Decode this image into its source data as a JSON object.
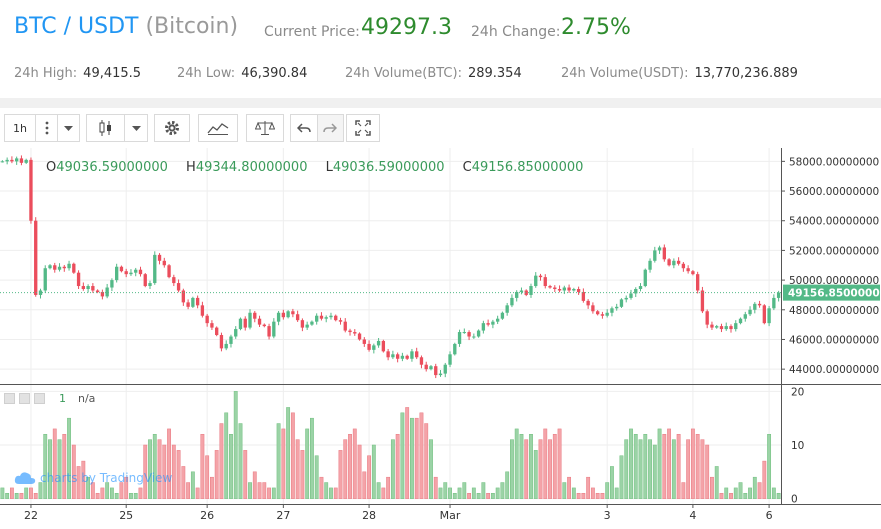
{
  "header": {
    "pair": "BTC / USDT",
    "name": "(Bitcoin)",
    "current_price_label": "Current Price:",
    "current_price": "49297.3",
    "change_label": "24h Change:",
    "change": "2.75%",
    "stats": [
      {
        "label": "24h High:",
        "value": "49,415.5"
      },
      {
        "label": "24h Low:",
        "value": "46,390.84"
      },
      {
        "label": "24h Volume(BTC):",
        "value": "289.354"
      },
      {
        "label": "24h Volume(USDT):",
        "value": "13,770,236.889"
      }
    ],
    "colors": {
      "pair": "#2196f3",
      "price": "#2e8b2e",
      "label": "#8a8a8a"
    }
  },
  "toolbar": {
    "interval": "1h",
    "icons": [
      "more-vertical-icon",
      "dropdown-icon",
      "candles-icon",
      "dropdown-icon",
      "gear-icon",
      "indicators-icon",
      "compare-scale-icon",
      "undo-icon",
      "redo-icon",
      "fullscreen-icon"
    ]
  },
  "legend": {
    "o_label": "O",
    "o": "49036.59000000",
    "h_label": "H",
    "h": "49344.80000000",
    "l_label": "L",
    "l": "49036.59000000",
    "c_label": "C",
    "c": "49156.85000000"
  },
  "volume_legend": {
    "value": "1",
    "na": "n/a"
  },
  "watermark": "charts by TradingView",
  "chart_data": {
    "type": "candlestick",
    "price_axis": {
      "ticks": [
        44000,
        46000,
        48000,
        50000,
        52000,
        54000,
        56000,
        58000
      ],
      "tick_labels": [
        "44000.00000000",
        "46000.00000000",
        "48000.00000000",
        "50000.00000000",
        "52000.00000000",
        "54000.00000000",
        "56000.00000000",
        "58000.00000000"
      ],
      "range": [
        43000,
        58900
      ]
    },
    "last_price": 49156.85,
    "last_price_label": "49156.85000000",
    "volume_axis": {
      "ticks": [
        0,
        10,
        20
      ],
      "tick_labels": [
        "0",
        "10",
        "20"
      ],
      "range": [
        -1,
        21
      ]
    },
    "x_axis": {
      "ticks": [
        {
          "index": 6,
          "label": "22"
        },
        {
          "index": 26,
          "label": "25"
        },
        {
          "index": 43,
          "label": "26"
        },
        {
          "index": 59,
          "label": "27"
        },
        {
          "index": 77,
          "label": "28"
        },
        {
          "index": 94,
          "label": "Mar"
        },
        {
          "index": 127,
          "label": "3"
        },
        {
          "index": 145,
          "label": "4"
        },
        {
          "index": 161,
          "label": "6"
        }
      ]
    },
    "price_path": [
      58000,
      58100,
      58000,
      58200,
      57900,
      58100,
      54000,
      49000,
      49300,
      50800,
      51000,
      50700,
      50900,
      50800,
      51100,
      50500,
      49600,
      49400,
      49600,
      49300,
      49200,
      48900,
      49500,
      50000,
      50900,
      50600,
      50400,
      50500,
      50700,
      50400,
      49600,
      49800,
      51700,
      51300,
      51000,
      50200,
      49800,
      49300,
      48500,
      48200,
      48800,
      48300,
      47600,
      47100,
      46800,
      46300,
      45400,
      45700,
      46200,
      46700,
      47400,
      46800,
      47800,
      47400,
      47000,
      46900,
      46200,
      47200,
      47800,
      47500,
      47900,
      47700,
      47300,
      46800,
      47000,
      47200,
      47600,
      47400,
      47500,
      47600,
      47300,
      47200,
      46600,
      46500,
      46400,
      46000,
      45700,
      45300,
      45600,
      45900,
      45200,
      44800,
      45000,
      44700,
      44900,
      44700,
      45200,
      44800,
      44300,
      44000,
      44200,
      43600,
      43700,
      44300,
      45000,
      45700,
      46500,
      46500,
      46200,
      46200,
      46600,
      47100,
      47000,
      47200,
      47400,
      47800,
      48300,
      48800,
      49200,
      49300,
      49000,
      49600,
      50300,
      50200,
      49600,
      49500,
      49400,
      49300,
      49500,
      49300,
      49400,
      49200,
      48600,
      48300,
      47900,
      47700,
      47600,
      47800,
      48100,
      48200,
      48700,
      48800,
      49100,
      49400,
      49600,
      50700,
      51300,
      52000,
      52200,
      51400,
      51000,
      51300,
      51100,
      50800,
      50600,
      50400,
      49300,
      47900,
      47000,
      46800,
      46900,
      46700,
      46900,
      46700,
      47100,
      47400,
      47700,
      48000,
      48400,
      48300,
      47100,
      48100,
      48800,
      49157
    ],
    "volume": [
      2,
      1,
      2,
      1,
      1,
      2,
      2,
      1,
      3,
      12,
      11,
      13,
      11,
      12,
      15,
      10,
      6,
      7,
      4,
      3,
      1,
      2,
      3,
      2,
      1,
      3,
      4,
      1,
      1,
      2,
      10,
      11,
      12,
      11,
      10,
      13,
      10,
      9,
      6,
      3,
      5,
      2,
      12,
      8,
      4,
      9,
      14,
      16,
      12,
      20,
      14,
      9,
      3,
      5,
      3,
      3,
      2,
      2,
      14,
      13,
      17,
      16,
      11,
      9,
      13,
      15,
      8,
      4,
      3,
      2,
      2,
      9,
      11,
      12,
      13,
      10,
      5,
      8,
      10,
      3,
      2,
      4,
      11,
      12,
      16,
      17,
      15,
      15,
      16,
      14,
      11,
      4,
      2,
      3,
      2,
      1,
      2,
      3,
      1,
      2,
      1,
      3,
      1,
      1,
      2,
      3,
      5,
      11,
      13,
      12,
      11,
      12,
      9,
      11,
      13,
      11,
      12,
      13,
      3,
      4,
      2,
      1,
      1,
      4,
      2,
      1,
      1,
      3,
      6,
      2,
      8,
      11,
      13,
      12,
      11,
      12,
      11,
      10,
      13,
      12,
      13,
      11,
      12,
      3,
      11,
      13,
      12,
      11,
      10,
      4,
      6,
      1,
      2,
      1,
      2,
      3,
      1,
      2,
      4,
      3,
      7,
      12,
      2,
      1
    ]
  }
}
